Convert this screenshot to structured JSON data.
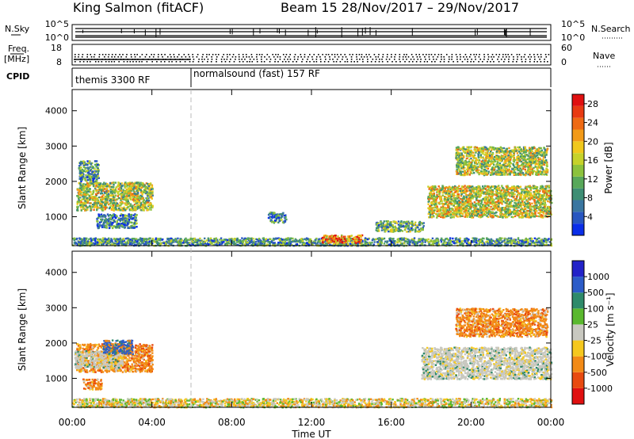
{
  "header": {
    "title_left": "King Salmon (fitACF)",
    "title_right": "Beam 15  28/Nov/2017 – 29/Nov/2017"
  },
  "top_panels": {
    "nsky": {
      "label": "N.Sky",
      "left_ticks": [
        "10^5",
        "10^0"
      ],
      "right_ticks": [
        "10^5",
        "10^0"
      ],
      "right_label": "N.Search"
    },
    "freq": {
      "label_line1": "Freq.",
      "label_line2": "[MHz]",
      "left_ticks": [
        "18",
        "8"
      ],
      "right_ticks": [
        "60",
        "0"
      ],
      "right_label": "Nave"
    },
    "cpid": {
      "label": "CPID",
      "segments": [
        "themis 3300 RF",
        "normalsound (fast) 157 RF"
      ]
    }
  },
  "chart_data": [
    {
      "type": "heatmap",
      "panel": "power",
      "ylabel": "Slant Range [km]",
      "xlabel": "",
      "ylim": [
        180,
        4600
      ],
      "xlim": [
        0,
        24
      ],
      "yticks": [
        "1000",
        "2000",
        "3000",
        "4000"
      ],
      "xticks_hours": [
        0,
        4,
        8,
        12,
        16,
        20,
        24
      ],
      "colorbar": {
        "label": "Power [dB]",
        "ticks": [
          "4",
          "8",
          "12",
          "16",
          "20",
          "24",
          "28"
        ],
        "range": [
          0,
          30
        ],
        "colors": [
          "#0a2ee8",
          "#2856c0",
          "#3a76a0",
          "#3e8e74",
          "#58a85a",
          "#8cc23c",
          "#c6d22a",
          "#f0c81c",
          "#f29a18",
          "#ee6a14",
          "#e83a12",
          "#e01010"
        ]
      },
      "regions": [
        {
          "t0": 0.2,
          "t1": 4.0,
          "r0": 1200,
          "r1": 2000,
          "level": 0.5
        },
        {
          "t0": 0.3,
          "t1": 1.3,
          "r0": 2000,
          "r1": 2600,
          "level": 0.3
        },
        {
          "t0": 1.2,
          "t1": 3.2,
          "r0": 700,
          "r1": 1100,
          "level": 0.25
        },
        {
          "t0": 0.0,
          "t1": 24.0,
          "r0": 200,
          "r1": 420,
          "level": 0.3
        },
        {
          "t0": 9.8,
          "t1": 10.7,
          "r0": 850,
          "r1": 1150,
          "level": 0.25
        },
        {
          "t0": 15.2,
          "t1": 17.6,
          "r0": 600,
          "r1": 900,
          "level": 0.35
        },
        {
          "t0": 12.5,
          "t1": 14.5,
          "r0": 280,
          "r1": 500,
          "level": 0.75
        },
        {
          "t0": 19.2,
          "t1": 23.8,
          "r0": 2200,
          "r1": 3000,
          "level": 0.5
        },
        {
          "t0": 17.8,
          "t1": 24.0,
          "r0": 1000,
          "r1": 1900,
          "level": 0.55
        }
      ]
    },
    {
      "type": "heatmap",
      "panel": "velocity",
      "ylabel": "Slant Range [km]",
      "xlabel": "Time UT",
      "ylim": [
        180,
        4600
      ],
      "xlim": [
        0,
        24
      ],
      "yticks": [
        "1000",
        "2000",
        "3000",
        "4000"
      ],
      "xticks": [
        "00:00",
        "04:00",
        "08:00",
        "12:00",
        "16:00",
        "20:00",
        "00:00"
      ],
      "xticks_hours": [
        0,
        4,
        8,
        12,
        16,
        20,
        24
      ],
      "colorbar": {
        "label": "Velocity [m s⁻¹]",
        "ticks": [
          "1000",
          "500",
          "100",
          "25",
          "-25",
          "-100",
          "-500",
          "-1000"
        ],
        "colors": [
          "#2222c8",
          "#2c5cc8",
          "#2e8a6a",
          "#5ab82e",
          "#c8c8c0",
          "#f5c81e",
          "#f28a16",
          "#e84a10",
          "#e01010"
        ]
      },
      "regions": [
        {
          "t0": 0.2,
          "t1": 4.0,
          "r0": 1200,
          "r1": 2000,
          "class": "orange"
        },
        {
          "t0": 0.1,
          "t1": 2.5,
          "r0": 1300,
          "r1": 1800,
          "class": "gray"
        },
        {
          "t0": 1.5,
          "t1": 3.0,
          "r0": 1700,
          "r1": 2100,
          "class": "blue"
        },
        {
          "t0": 0.5,
          "t1": 1.5,
          "r0": 700,
          "r1": 1000,
          "class": "orange"
        },
        {
          "t0": 19.2,
          "t1": 23.8,
          "r0": 2200,
          "r1": 3000,
          "class": "orange"
        },
        {
          "t0": 17.5,
          "t1": 24.0,
          "r0": 1000,
          "r1": 1900,
          "class": "gray"
        },
        {
          "t0": 0.0,
          "t1": 24.0,
          "r0": 200,
          "r1": 450,
          "class": "mixed"
        }
      ]
    }
  ],
  "marker": {
    "hour": 6.0
  }
}
